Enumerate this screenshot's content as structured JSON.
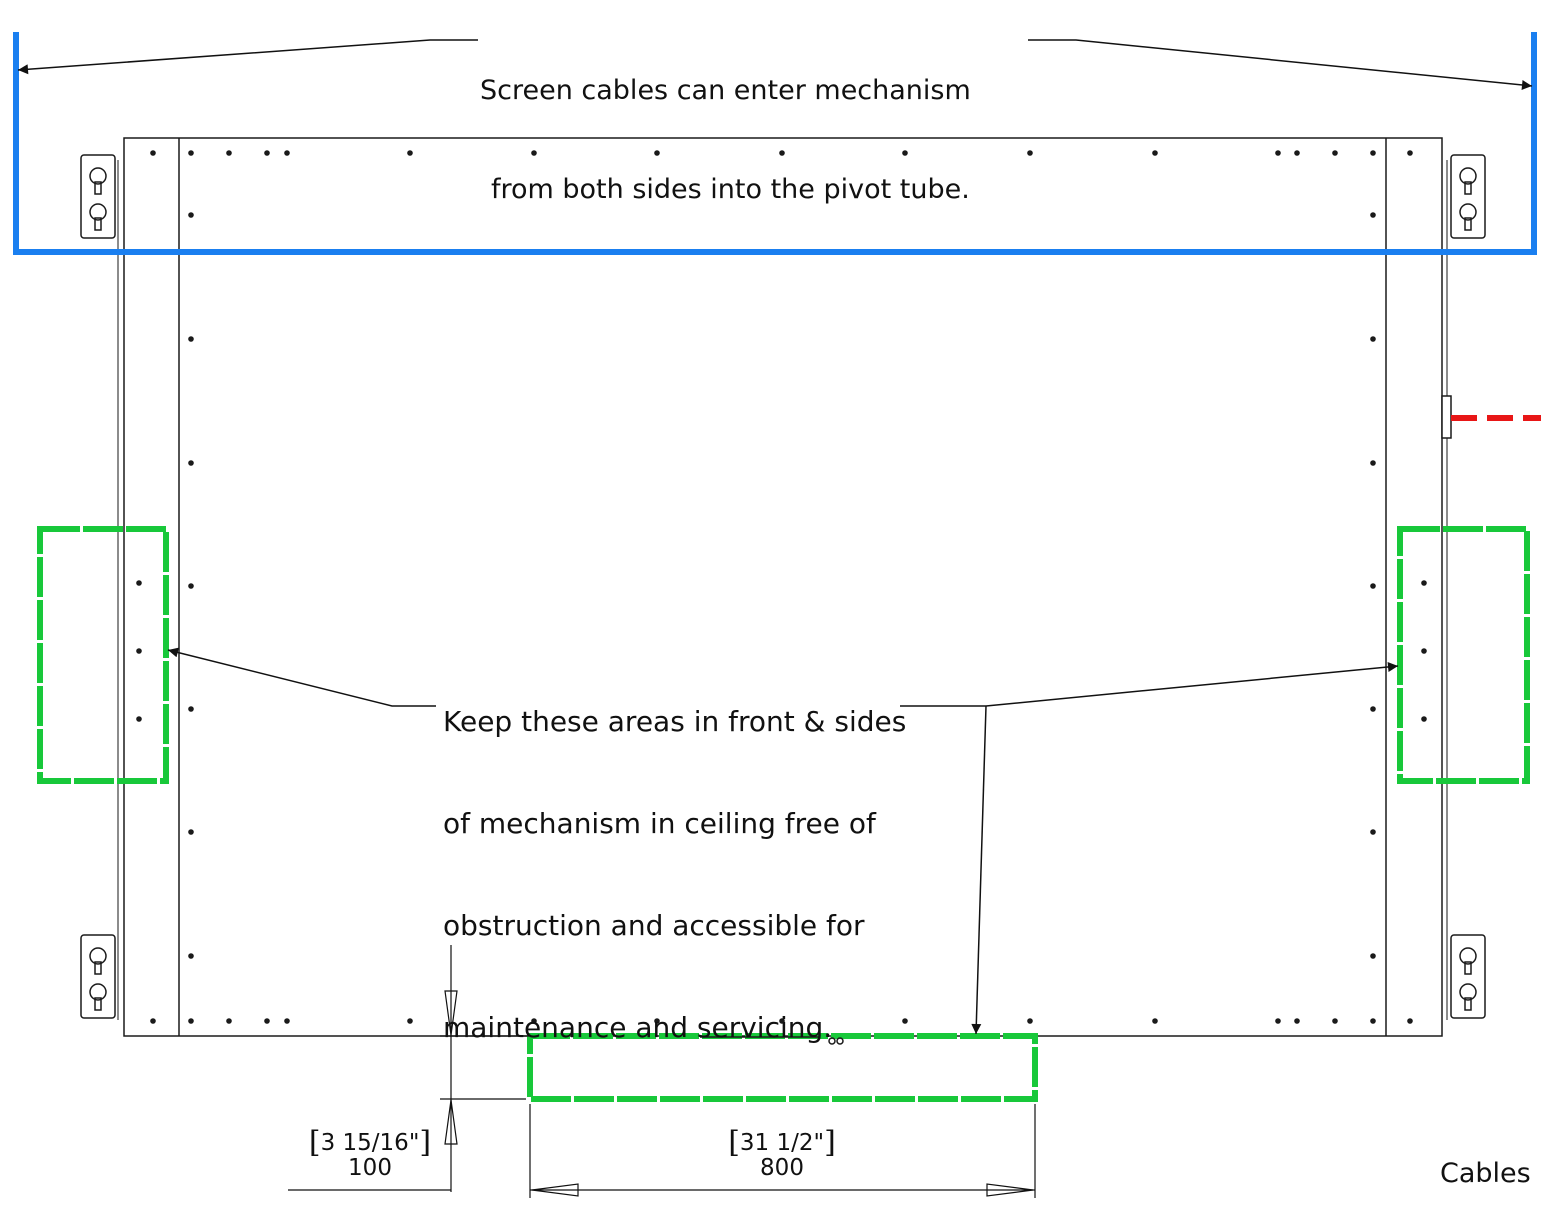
{
  "annotations": {
    "cables_top_line1": "Screen cables can enter mechanism",
    "cables_top_line2": "from both sides into the pivot tube.",
    "keep_line1": "Keep these areas in front & sides",
    "keep_line2": "of mechanism in ceiling free of",
    "keep_line3": "obstruction and accessible for",
    "keep_line4": "maintenance and servicing.",
    "cables_corner": "Cables"
  },
  "dimensions": {
    "depth_imperial": "3 15/16\"",
    "depth_metric": "100",
    "width_imperial": "31 1/2\"",
    "width_metric": "800"
  },
  "colors": {
    "pivot_tube": "#1a7ff0",
    "access_zone": "#18c83a",
    "cable_lead": "#e81616",
    "outline": "#1a1a1a"
  }
}
